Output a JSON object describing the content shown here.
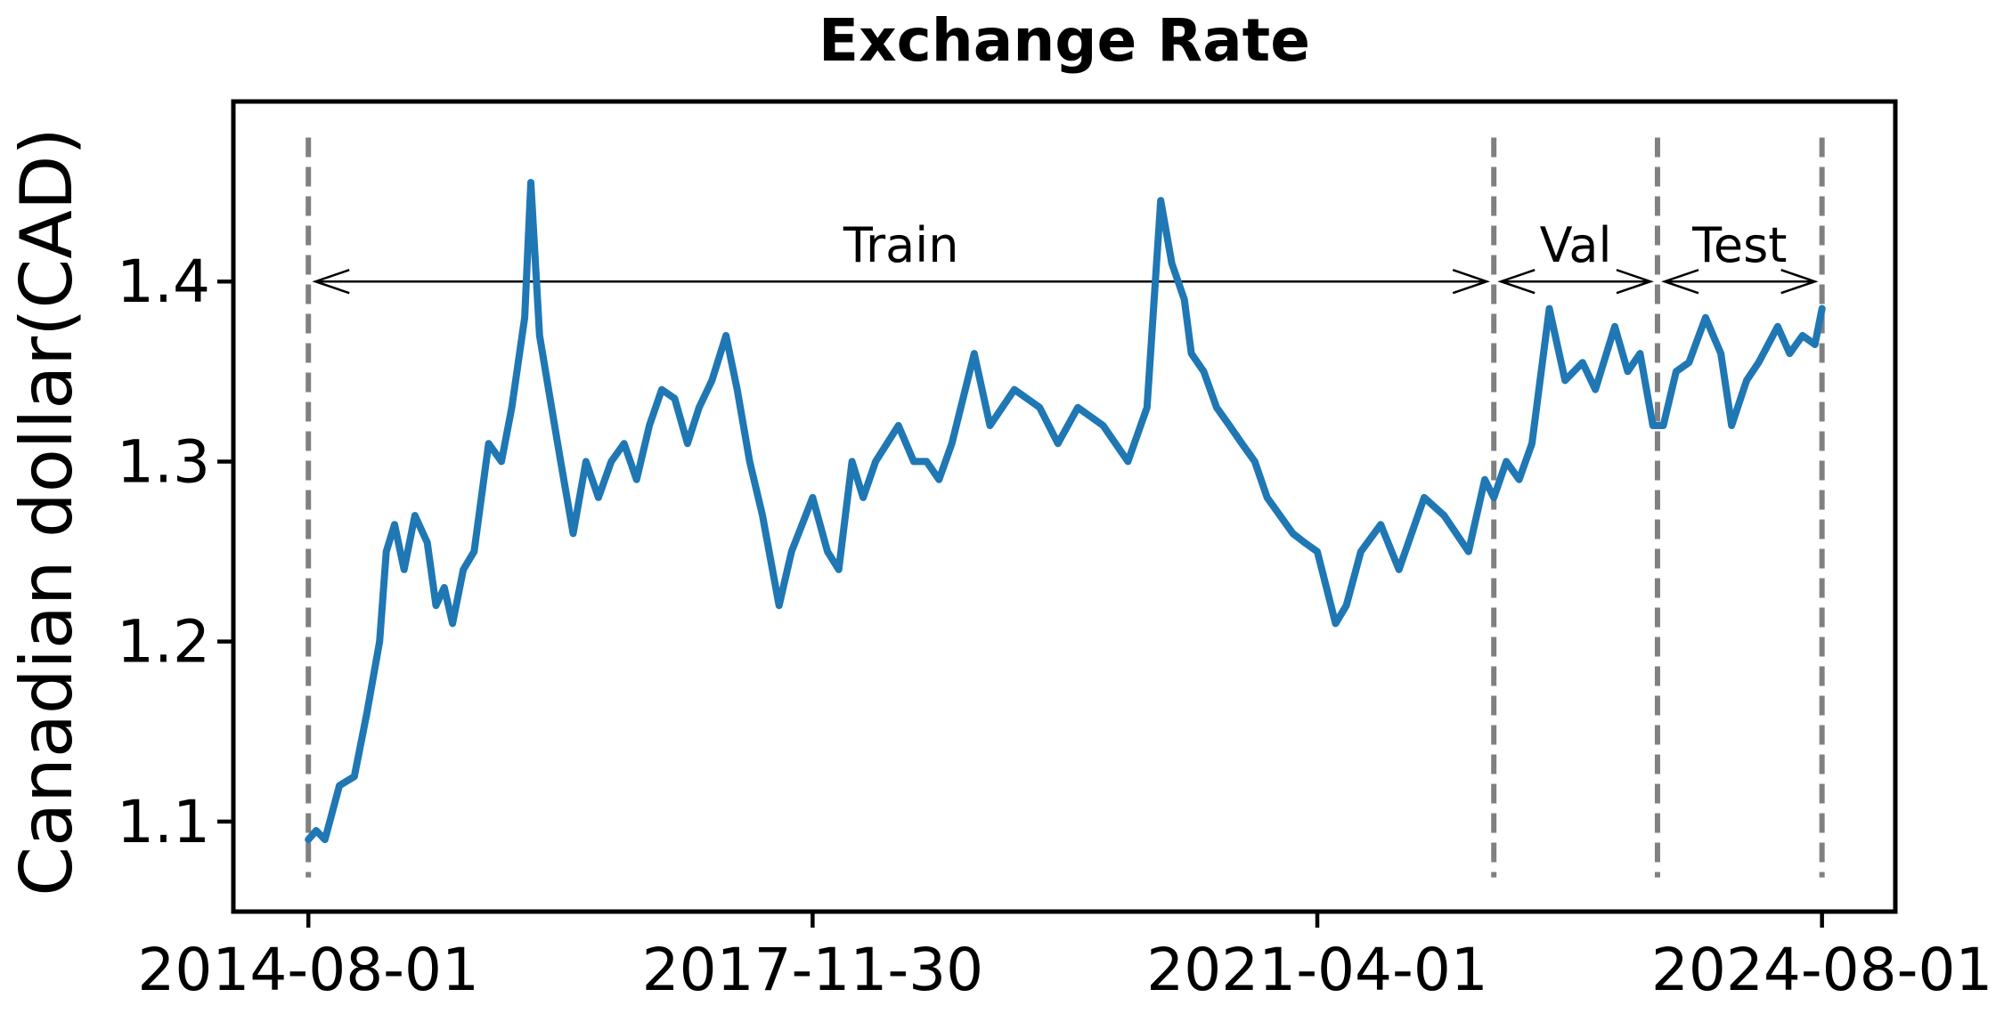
{
  "chart_data": {
    "type": "line",
    "title": "Exchange Rate",
    "xlabel": "",
    "ylabel": "Canadian dollar(CAD)",
    "x_ticks": [
      "2014-08-01",
      "2017-11-30",
      "2021-04-01",
      "2024-08-01"
    ],
    "y_ticks": [
      "1.1",
      "1.2",
      "1.3",
      "1.4"
    ],
    "ylim": [
      1.05,
      1.5
    ],
    "xlim": [
      "2014-02-01",
      "2025-01-25"
    ],
    "grid": false,
    "splits": [
      {
        "label": "Train",
        "start": "2014-08-01",
        "end": "2022-06-01"
      },
      {
        "label": "Val",
        "start": "2022-06-01",
        "end": "2023-07-01"
      },
      {
        "label": "Test",
        "start": "2023-07-01",
        "end": "2024-08-01"
      }
    ],
    "series": [
      {
        "color": "#1f77b4",
        "points": [
          [
            "2014-08-01",
            1.09
          ],
          [
            "2014-08-20",
            1.095
          ],
          [
            "2014-09-10",
            1.09
          ],
          [
            "2014-10-15",
            1.12
          ],
          [
            "2014-11-20",
            1.125
          ],
          [
            "2014-12-20",
            1.16
          ],
          [
            "2015-01-20",
            1.2
          ],
          [
            "2015-02-05",
            1.25
          ],
          [
            "2015-02-25",
            1.265
          ],
          [
            "2015-03-20",
            1.24
          ],
          [
            "2015-04-15",
            1.27
          ],
          [
            "2015-05-15",
            1.255
          ],
          [
            "2015-06-05",
            1.22
          ],
          [
            "2015-06-25",
            1.23
          ],
          [
            "2015-07-15",
            1.21
          ],
          [
            "2015-08-10",
            1.24
          ],
          [
            "2015-09-05",
            1.25
          ],
          [
            "2015-10-10",
            1.31
          ],
          [
            "2015-11-10",
            1.3
          ],
          [
            "2015-12-05",
            1.33
          ],
          [
            "2016-01-05",
            1.38
          ],
          [
            "2016-01-20",
            1.455
          ],
          [
            "2016-02-10",
            1.37
          ],
          [
            "2016-03-10",
            1.33
          ],
          [
            "2016-04-01",
            1.3
          ],
          [
            "2016-05-01",
            1.26
          ],
          [
            "2016-06-01",
            1.3
          ],
          [
            "2016-07-01",
            1.28
          ],
          [
            "2016-08-01",
            1.3
          ],
          [
            "2016-09-01",
            1.31
          ],
          [
            "2016-10-01",
            1.29
          ],
          [
            "2016-11-01",
            1.32
          ],
          [
            "2016-12-01",
            1.34
          ],
          [
            "2017-01-01",
            1.335
          ],
          [
            "2017-02-01",
            1.31
          ],
          [
            "2017-03-01",
            1.33
          ],
          [
            "2017-04-01",
            1.345
          ],
          [
            "2017-05-05",
            1.37
          ],
          [
            "2017-06-01",
            1.34
          ],
          [
            "2017-07-01",
            1.3
          ],
          [
            "2017-08-01",
            1.27
          ],
          [
            "2017-09-10",
            1.22
          ],
          [
            "2017-10-10",
            1.25
          ],
          [
            "2017-11-30",
            1.28
          ],
          [
            "2018-01-05",
            1.25
          ],
          [
            "2018-02-01",
            1.24
          ],
          [
            "2018-03-05",
            1.3
          ],
          [
            "2018-04-01",
            1.28
          ],
          [
            "2018-05-01",
            1.3
          ],
          [
            "2018-06-25",
            1.32
          ],
          [
            "2018-08-01",
            1.3
          ],
          [
            "2018-09-01",
            1.3
          ],
          [
            "2018-10-01",
            1.29
          ],
          [
            "2018-11-01",
            1.31
          ],
          [
            "2018-12-25",
            1.36
          ],
          [
            "2019-02-01",
            1.32
          ],
          [
            "2019-04-01",
            1.34
          ],
          [
            "2019-06-01",
            1.33
          ],
          [
            "2019-07-15",
            1.31
          ],
          [
            "2019-09-01",
            1.33
          ],
          [
            "2019-11-01",
            1.32
          ],
          [
            "2019-12-31",
            1.3
          ],
          [
            "2020-02-15",
            1.33
          ],
          [
            "2020-03-19",
            1.445
          ],
          [
            "2020-04-15",
            1.41
          ],
          [
            "2020-05-15",
            1.39
          ],
          [
            "2020-06-01",
            1.36
          ],
          [
            "2020-07-01",
            1.35
          ],
          [
            "2020-08-01",
            1.33
          ],
          [
            "2020-09-01",
            1.32
          ],
          [
            "2020-10-01",
            1.31
          ],
          [
            "2020-11-01",
            1.3
          ],
          [
            "2020-12-01",
            1.28
          ],
          [
            "2021-01-01",
            1.27
          ],
          [
            "2021-02-01",
            1.26
          ],
          [
            "2021-03-01",
            1.255
          ],
          [
            "2021-04-01",
            1.25
          ],
          [
            "2021-05-15",
            1.21
          ],
          [
            "2021-06-10",
            1.22
          ],
          [
            "2021-07-15",
            1.25
          ],
          [
            "2021-09-01",
            1.265
          ],
          [
            "2021-10-15",
            1.24
          ],
          [
            "2021-12-15",
            1.28
          ],
          [
            "2022-02-01",
            1.27
          ],
          [
            "2022-04-01",
            1.25
          ],
          [
            "2022-05-10",
            1.29
          ],
          [
            "2022-06-01",
            1.28
          ],
          [
            "2022-07-01",
            1.3
          ],
          [
            "2022-08-01",
            1.29
          ],
          [
            "2022-09-01",
            1.31
          ],
          [
            "2022-10-13",
            1.385
          ],
          [
            "2022-11-20",
            1.345
          ],
          [
            "2023-01-01",
            1.355
          ],
          [
            "2023-02-01",
            1.34
          ],
          [
            "2023-03-20",
            1.375
          ],
          [
            "2023-04-20",
            1.35
          ],
          [
            "2023-05-20",
            1.36
          ],
          [
            "2023-06-20",
            1.32
          ],
          [
            "2023-07-15",
            1.32
          ],
          [
            "2023-08-15",
            1.35
          ],
          [
            "2023-09-15",
            1.355
          ],
          [
            "2023-10-25",
            1.38
          ],
          [
            "2023-12-01",
            1.36
          ],
          [
            "2023-12-27",
            1.32
          ],
          [
            "2024-02-01",
            1.345
          ],
          [
            "2024-03-01",
            1.355
          ],
          [
            "2024-04-16",
            1.375
          ],
          [
            "2024-05-15",
            1.36
          ],
          [
            "2024-06-15",
            1.37
          ],
          [
            "2024-07-15",
            1.365
          ],
          [
            "2024-08-01",
            1.385
          ]
        ]
      }
    ]
  }
}
